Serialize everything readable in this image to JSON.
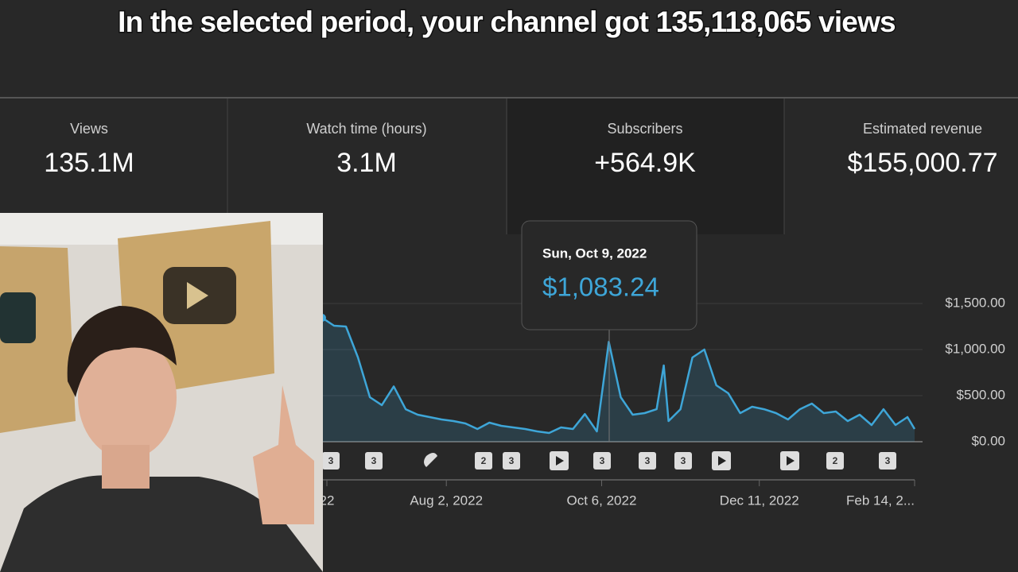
{
  "header": {
    "title": "In the selected period, your channel got 135,118,065 views"
  },
  "cards": [
    {
      "label": "Views",
      "value": "135.1M"
    },
    {
      "label": "Watch time (hours)",
      "value": "3.1M"
    },
    {
      "label": "Subscribers",
      "value": "+564.9K"
    },
    {
      "label": "Estimated revenue",
      "value": "$155,000.77"
    }
  ],
  "tooltip": {
    "date": "Sun, Oct 9, 2022",
    "value": "$1,083.24"
  },
  "markers": [
    "3",
    "3",
    "2",
    "3",
    "3",
    "3",
    "3",
    "2",
    "3"
  ],
  "chart_data": {
    "type": "line",
    "color": "#3ea6d8",
    "x": [
      "Jun 11, 2022",
      "Jun 16, 2022",
      "Jun 21, 2022",
      "Jun 26, 2022",
      "Jul 1, 2022",
      "Jul 6, 2022",
      "Jul 11, 2022",
      "Jul 16, 2022",
      "Jul 21, 2022",
      "Jul 26, 2022",
      "Jul 31, 2022",
      "Aug 5, 2022",
      "Aug 10, 2022",
      "Aug 15, 2022",
      "Aug 20, 2022",
      "Aug 25, 2022",
      "Aug 30, 2022",
      "Sep 4, 2022",
      "Sep 9, 2022",
      "Sep 14, 2022",
      "Sep 19, 2022",
      "Sep 24, 2022",
      "Sep 29, 2022",
      "Oct 4, 2022",
      "Oct 9, 2022",
      "Oct 14, 2022",
      "Oct 19, 2022",
      "Oct 24, 2022",
      "Oct 29, 2022",
      "Nov 1, 2022",
      "Nov 3, 2022",
      "Nov 8, 2022",
      "Nov 13, 2022",
      "Nov 18, 2022",
      "Nov 23, 2022",
      "Nov 28, 2022",
      "Dec 3, 2022",
      "Dec 8, 2022",
      "Dec 13, 2022",
      "Dec 18, 2022",
      "Dec 23, 2022",
      "Dec 28, 2022",
      "Jan 2, 2023",
      "Jan 7, 2023",
      "Jan 12, 2023",
      "Jan 17, 2023",
      "Jan 22, 2023",
      "Jan 27, 2023",
      "Feb 1, 2023",
      "Feb 6, 2023",
      "Feb 11, 2023",
      "Feb 14, 2023"
    ],
    "values": [
      1345,
      1259,
      1250,
      914,
      483,
      397,
      600,
      353,
      293,
      267,
      241,
      224,
      198,
      138,
      207,
      172,
      155,
      138,
      112,
      95,
      155,
      138,
      300,
      112,
      1083.24,
      483,
      293,
      310,
      353,
      828,
      224,
      353,
      914,
      1000,
      612,
      526,
      310,
      379,
      353,
      310,
      241,
      353,
      414,
      310,
      328,
      224,
      293,
      181,
      353,
      181,
      267,
      138
    ],
    "xlim": [
      "Jun 11, 2022",
      "Feb 14, 2023"
    ],
    "xticks": [
      {
        "value": "Jun 13, 2022",
        "label": "22"
      },
      "Aug 2, 2022",
      "Oct 6, 2022",
      "Dec 11, 2022",
      {
        "value": "Feb 14, 2023",
        "label": "Feb 14, 2..."
      }
    ],
    "ylim": [
      0,
      1500
    ],
    "yticks": [
      {
        "value": 0,
        "label": "$0.00"
      },
      {
        "value": 500,
        "label": "$500.00"
      },
      {
        "value": 1000,
        "label": "$1,000.00"
      },
      {
        "value": 1500,
        "label": "$1,500.00"
      }
    ],
    "grid": true
  }
}
